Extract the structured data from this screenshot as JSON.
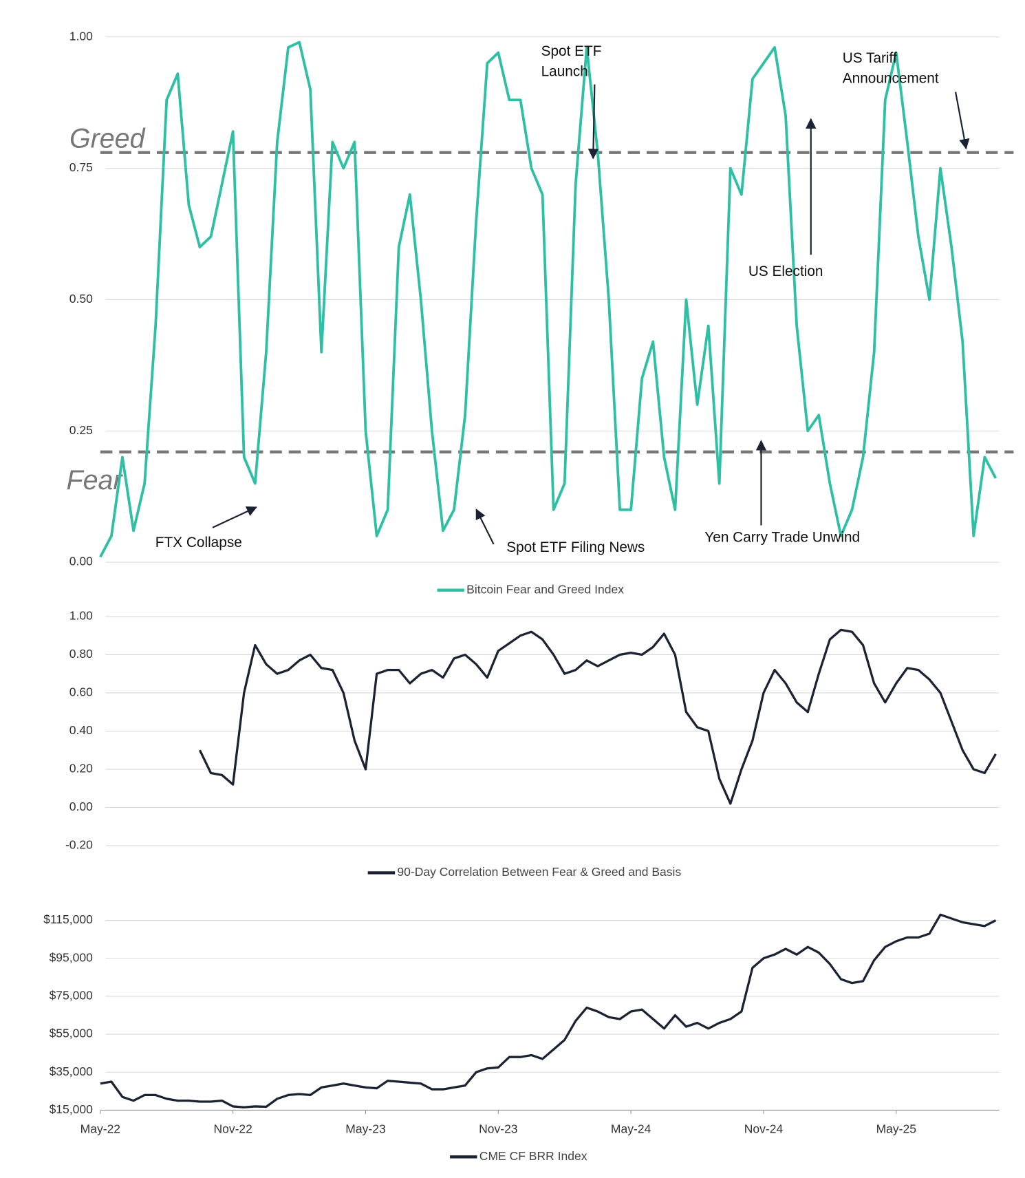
{
  "chart_data": [
    {
      "type": "line",
      "ylim": [
        0,
        1
      ],
      "yticks": [
        {
          "value": 0,
          "label": "0.00"
        },
        {
          "value": 0.25,
          "label": "0.25"
        },
        {
          "value": 0.5,
          "label": "0.50"
        },
        {
          "value": 0.75,
          "label": "0.75"
        },
        {
          "value": 1,
          "label": "1.00"
        }
      ],
      "grid": true,
      "legend": "bottom",
      "series": [
        {
          "name": "Bitcoin Fear and Greed Index",
          "color": "#2ebfa5",
          "values": [
            0.01,
            0.05,
            0.2,
            0.06,
            0.15,
            0.45,
            0.88,
            0.93,
            0.68,
            0.6,
            0.62,
            0.72,
            0.82,
            0.2,
            0.15,
            0.4,
            0.8,
            0.98,
            0.99,
            0.9,
            0.4,
            0.8,
            0.75,
            0.8,
            0.25,
            0.05,
            0.1,
            0.6,
            0.7,
            0.5,
            0.25,
            0.06,
            0.1,
            0.28,
            0.65,
            0.95,
            0.97,
            0.88,
            0.88,
            0.75,
            0.7,
            0.1,
            0.15,
            0.72,
            0.98,
            0.78,
            0.5,
            0.1,
            0.1,
            0.35,
            0.42,
            0.2,
            0.1,
            0.5,
            0.3,
            0.45,
            0.15,
            0.75,
            0.7,
            0.92,
            0.95,
            0.98,
            0.85,
            0.45,
            0.25,
            0.28,
            0.15,
            0.05,
            0.1,
            0.2,
            0.4,
            0.88,
            0.97,
            0.8,
            0.62,
            0.5,
            0.75,
            0.6,
            0.42,
            0.05,
            0.2,
            0.16
          ]
        }
      ],
      "reference_lines": [
        {
          "label": "Greed",
          "value": 0.78
        },
        {
          "label": "Fear",
          "value": 0.21
        }
      ],
      "annotations": [
        {
          "text": [
            "FTX Collapse"
          ]
        },
        {
          "text": [
            "Spot ETF Filing News"
          ]
        },
        {
          "text": [
            "Spot ETF",
            "Launch"
          ]
        },
        {
          "text": [
            "US Election"
          ]
        },
        {
          "text": [
            "Yen Carry Trade Unwind"
          ]
        },
        {
          "text": [
            "US Tariff",
            "Announcement"
          ]
        }
      ]
    },
    {
      "type": "line",
      "ylim": [
        -0.2,
        1
      ],
      "yticks": [
        {
          "value": -0.2,
          "label": "-0.20"
        },
        {
          "value": 0,
          "label": "0.00"
        },
        {
          "value": 0.2,
          "label": "0.20"
        },
        {
          "value": 0.4,
          "label": "0.40"
        },
        {
          "value": 0.6,
          "label": "0.60"
        },
        {
          "value": 0.8,
          "label": "0.80"
        },
        {
          "value": 1,
          "label": "1.00"
        }
      ],
      "grid": true,
      "legend": "bottom",
      "series": [
        {
          "name": "90-Day Correlation Between Fear & Greed and Basis",
          "color": "#1b2333",
          "values": [
            null,
            null,
            null,
            null,
            null,
            null,
            null,
            null,
            null,
            0.3,
            0.18,
            0.17,
            0.12,
            0.6,
            0.85,
            0.75,
            0.7,
            0.72,
            0.77,
            0.8,
            0.73,
            0.72,
            0.6,
            0.35,
            0.2,
            0.7,
            0.72,
            0.72,
            0.65,
            0.7,
            0.72,
            0.68,
            0.78,
            0.8,
            0.75,
            0.68,
            0.82,
            0.86,
            0.9,
            0.92,
            0.88,
            0.8,
            0.7,
            0.72,
            0.77,
            0.74,
            0.77,
            0.8,
            0.81,
            0.8,
            0.84,
            0.91,
            0.8,
            0.5,
            0.42,
            0.4,
            0.15,
            0.02,
            0.2,
            0.35,
            0.6,
            0.72,
            0.65,
            0.55,
            0.5,
            0.7,
            0.88,
            0.93,
            0.92,
            0.85,
            0.65,
            0.55,
            0.65,
            0.73,
            0.72,
            0.67,
            0.6,
            0.45,
            0.3,
            0.2,
            0.18,
            0.28
          ]
        }
      ]
    },
    {
      "type": "line",
      "categories": [
        "May-22",
        null,
        null,
        null,
        null,
        null,
        null,
        null,
        null,
        null,
        null,
        null,
        "Nov-22",
        null,
        null,
        null,
        null,
        null,
        null,
        null,
        null,
        null,
        null,
        null,
        "May-23",
        null,
        null,
        null,
        null,
        null,
        null,
        null,
        null,
        null,
        null,
        null,
        "Nov-23",
        null,
        null,
        null,
        null,
        null,
        null,
        null,
        null,
        null,
        null,
        null,
        "May-24",
        null,
        null,
        null,
        null,
        null,
        null,
        null,
        null,
        null,
        null,
        null,
        "Nov-24",
        null,
        null,
        null,
        null,
        null,
        null,
        null,
        null,
        null,
        null,
        null,
        "May-25",
        null,
        null,
        null,
        null,
        null,
        null,
        null,
        null,
        null
      ],
      "ylim": [
        15000,
        125000
      ],
      "yticks": [
        {
          "value": 15000,
          "label": "$15,000"
        },
        {
          "value": 35000,
          "label": "$35,000"
        },
        {
          "value": 55000,
          "label": "$55,000"
        },
        {
          "value": 75000,
          "label": "$75,000"
        },
        {
          "value": 95000,
          "label": "$95,000"
        },
        {
          "value": 115000,
          "label": "$115,000"
        }
      ],
      "grid": true,
      "legend": "bottom",
      "series": [
        {
          "name": "CME CF BRR Index",
          "color": "#1b2333",
          "values": [
            29000,
            30000,
            22000,
            20000,
            23000,
            23000,
            21000,
            20000,
            20000,
            19500,
            19500,
            20000,
            17000,
            16500,
            17000,
            16800,
            21000,
            23000,
            23500,
            23000,
            27000,
            28000,
            29000,
            28000,
            27000,
            26500,
            30500,
            30000,
            29500,
            29000,
            26000,
            26000,
            27000,
            28000,
            35000,
            37000,
            37500,
            43000,
            43000,
            44000,
            42000,
            47000,
            52000,
            62000,
            69000,
            67000,
            64000,
            63000,
            67000,
            68000,
            63000,
            58000,
            65000,
            59000,
            61000,
            58000,
            61000,
            63000,
            67000,
            90000,
            95000,
            97000,
            100000,
            97000,
            101000,
            98000,
            92000,
            84000,
            82000,
            83000,
            94000,
            101000,
            104000,
            106000,
            106000,
            108000,
            118000,
            116000,
            114000,
            113000,
            112000,
            115000
          ]
        }
      ]
    }
  ]
}
